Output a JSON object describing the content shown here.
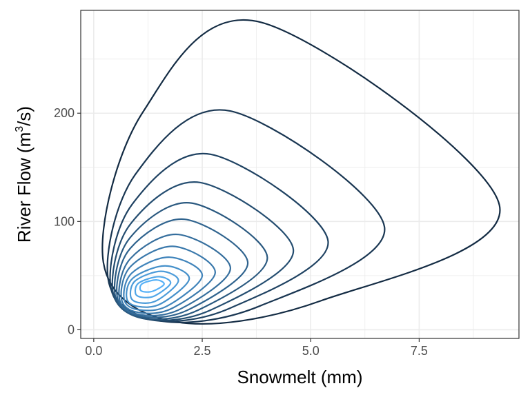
{
  "chart_data": {
    "type": "contour",
    "xlabel": "Snowmelt (mm)",
    "ylabel_main": "River Flow ",
    "ylabel_unit_base": "(m",
    "ylabel_unit_sup": "3",
    "ylabel_unit_tail": "/s)",
    "xlim": [
      -0.3,
      9.8
    ],
    "ylim": [
      -8,
      295
    ],
    "x_ticks": [
      0.0,
      2.5,
      5.0,
      7.5
    ],
    "x_tick_labels": [
      "0.0",
      "2.5",
      "5.0",
      "7.5"
    ],
    "y_ticks": [
      0,
      100,
      200
    ],
    "y_tick_labels": [
      "0",
      "100",
      "200"
    ],
    "grid": true,
    "legend": "none",
    "colors": {
      "low_level": "#132B43",
      "high_level": "#56B1F7",
      "grid": "#ebebeb",
      "panel_border": "#333333"
    },
    "peak": {
      "x": 1.5,
      "y": 42
    },
    "contours": [
      {
        "level": 1,
        "x_min": 0.22,
        "x_max": 9.35,
        "y_min": 7.5,
        "y_max": 284,
        "x_at_y_max": 3.85,
        "y_at_x_max": 115
      },
      {
        "level": 2,
        "x_min": 0.33,
        "x_max": 6.7,
        "y_min": 8.5,
        "y_max": 202,
        "x_at_y_max": 3.15,
        "y_at_x_max": 95
      },
      {
        "level": 3,
        "x_min": 0.39,
        "x_max": 5.4,
        "y_min": 9.3,
        "y_max": 162,
        "x_at_y_max": 2.7,
        "y_at_x_max": 82
      },
      {
        "level": 4,
        "x_min": 0.44,
        "x_max": 4.6,
        "y_min": 10,
        "y_max": 136,
        "x_at_y_max": 2.45,
        "y_at_x_max": 74
      },
      {
        "level": 5,
        "x_min": 0.49,
        "x_max": 4.0,
        "y_min": 11,
        "y_max": 117,
        "x_at_y_max": 2.25,
        "y_at_x_max": 67
      },
      {
        "level": 6,
        "x_min": 0.54,
        "x_max": 3.55,
        "y_min": 12.5,
        "y_max": 102,
        "x_at_y_max": 2.1,
        "y_at_x_max": 62
      },
      {
        "level": 7,
        "x_min": 0.59,
        "x_max": 3.15,
        "y_min": 14,
        "y_max": 88,
        "x_at_y_max": 1.95,
        "y_at_x_max": 57
      },
      {
        "level": 8,
        "x_min": 0.64,
        "x_max": 2.8,
        "y_min": 16,
        "y_max": 77,
        "x_at_y_max": 1.85,
        "y_at_x_max": 53
      },
      {
        "level": 9,
        "x_min": 0.7,
        "x_max": 2.5,
        "y_min": 18.5,
        "y_max": 67,
        "x_at_y_max": 1.75,
        "y_at_x_max": 50
      },
      {
        "level": 10,
        "x_min": 0.76,
        "x_max": 2.2,
        "y_min": 21.5,
        "y_max": 59,
        "x_at_y_max": 1.65,
        "y_at_x_max": 47
      },
      {
        "level": 11,
        "x_min": 0.85,
        "x_max": 1.95,
        "y_min": 25,
        "y_max": 54,
        "x_at_y_max": 1.55,
        "y_at_x_max": 45
      },
      {
        "level": 12,
        "x_min": 0.96,
        "x_max": 1.77,
        "y_min": 30,
        "y_max": 49,
        "x_at_y_max": 1.5,
        "y_at_x_max": 43
      },
      {
        "level": 13,
        "x_min": 1.07,
        "x_max": 1.62,
        "y_min": 35,
        "y_max": 46,
        "x_at_y_max": 1.45,
        "y_at_x_max": 42
      }
    ]
  }
}
